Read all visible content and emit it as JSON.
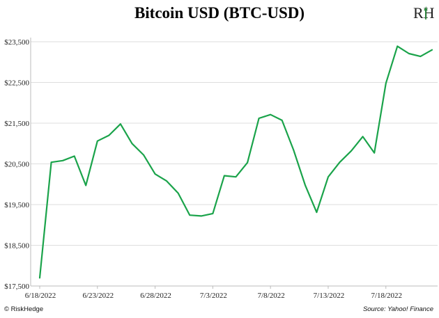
{
  "header": {
    "title": "Bitcoin USD (BTC-USD)",
    "logo_text": "RH"
  },
  "footer": {
    "copyright": "© RiskHedge",
    "source": "Source: Yahoo! Finance"
  },
  "colors": {
    "line": "#1aa34a",
    "grid": "#dddddd",
    "axis": "#bbbbbb",
    "logo_green": "#2d8a3e"
  },
  "chart_data": {
    "type": "line",
    "title": "Bitcoin USD (BTC-USD)",
    "xlabel": "",
    "ylabel": "",
    "ylim": [
      17500,
      23500
    ],
    "yticks": [
      17500,
      18500,
      19500,
      20500,
      21500,
      22500,
      23500
    ],
    "ytick_labels": [
      "$17,500",
      "$18,500",
      "$19,500",
      "$20,500",
      "$21,500",
      "$22,500",
      "$23,500"
    ],
    "xticks": [
      "6/18/2022",
      "6/23/2022",
      "6/28/2022",
      "7/3/2022",
      "7/8/2022",
      "7/13/2022",
      "7/18/2022"
    ],
    "grid": true,
    "series": [
      {
        "x": [
          "6/18/2022",
          "6/19/2022",
          "6/20/2022",
          "6/21/2022",
          "6/22/2022",
          "6/23/2022",
          "6/24/2022",
          "6/25/2022",
          "6/26/2022",
          "6/27/2022",
          "6/28/2022",
          "6/29/2022",
          "6/30/2022",
          "7/1/2022",
          "7/2/2022",
          "7/3/2022",
          "7/4/2022",
          "7/5/2022",
          "7/6/2022",
          "7/7/2022",
          "7/8/2022",
          "7/9/2022",
          "7/10/2022",
          "7/11/2022",
          "7/12/2022",
          "7/13/2022",
          "7/14/2022",
          "7/15/2022",
          "7/16/2022",
          "7/17/2022",
          "7/18/2022",
          "7/19/2022",
          "7/20/2022",
          "7/21/2022",
          "7/22/2022"
        ],
        "values": [
          17700,
          20540,
          20580,
          20690,
          19970,
          21060,
          21200,
          21480,
          21000,
          20720,
          20250,
          20080,
          19780,
          19240,
          19220,
          19280,
          20210,
          20180,
          20530,
          21620,
          21710,
          21570,
          20840,
          19980,
          19310,
          20180,
          20540,
          20820,
          21170,
          20770,
          22480,
          23390,
          23210,
          23140,
          23300
        ]
      }
    ]
  }
}
